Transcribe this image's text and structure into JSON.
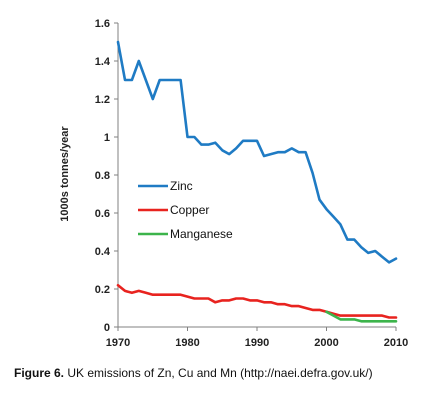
{
  "chart_data": {
    "type": "line",
    "title": "",
    "xlabel": "",
    "ylabel": "1000s tonnes/year",
    "xlim": [
      1970,
      2010
    ],
    "ylim": [
      0,
      1.6
    ],
    "x_ticks": [
      1970,
      1980,
      1990,
      2000,
      2010
    ],
    "y_ticks": [
      0,
      0.2,
      0.4,
      0.6,
      0.8,
      1,
      1.2,
      1.4,
      1.6
    ],
    "x_tick_labels": [
      "1970",
      "1980",
      "1990",
      "2000",
      "2010"
    ],
    "y_tick_labels": [
      "0",
      "0.2",
      "0.4",
      "0.6",
      "0.8",
      "1",
      "1.2",
      "1.4",
      "1.6"
    ],
    "grid": false,
    "legend_position": "center-left",
    "series": [
      {
        "name": "Zinc",
        "color": "#1f7bc4",
        "x": [
          1970,
          1971,
          1972,
          1973,
          1974,
          1975,
          1976,
          1977,
          1978,
          1979,
          1980,
          1981,
          1982,
          1983,
          1984,
          1985,
          1986,
          1987,
          1988,
          1989,
          1990,
          1991,
          1992,
          1993,
          1994,
          1995,
          1996,
          1997,
          1998,
          1999,
          2000,
          2001,
          2002,
          2003,
          2004,
          2005,
          2006,
          2007,
          2008,
          2009,
          2010
        ],
        "y": [
          1.5,
          1.3,
          1.3,
          1.4,
          1.3,
          1.2,
          1.3,
          1.3,
          1.3,
          1.3,
          1.0,
          1.0,
          0.96,
          0.96,
          0.97,
          0.93,
          0.91,
          0.94,
          0.98,
          0.98,
          0.98,
          0.9,
          0.91,
          0.92,
          0.92,
          0.94,
          0.92,
          0.92,
          0.81,
          0.67,
          0.62,
          0.58,
          0.54,
          0.46,
          0.46,
          0.42,
          0.39,
          0.4,
          0.37,
          0.34,
          0.36
        ]
      },
      {
        "name": "Copper",
        "color": "#e8231f",
        "x": [
          1970,
          1971,
          1972,
          1973,
          1974,
          1975,
          1976,
          1977,
          1978,
          1979,
          1980,
          1981,
          1982,
          1983,
          1984,
          1985,
          1986,
          1987,
          1988,
          1989,
          1990,
          1991,
          1992,
          1993,
          1994,
          1995,
          1996,
          1997,
          1998,
          1999,
          2000,
          2001,
          2002,
          2003,
          2004,
          2005,
          2006,
          2007,
          2008,
          2009,
          2010
        ],
        "y": [
          0.22,
          0.19,
          0.18,
          0.19,
          0.18,
          0.17,
          0.17,
          0.17,
          0.17,
          0.17,
          0.16,
          0.15,
          0.15,
          0.15,
          0.13,
          0.14,
          0.14,
          0.15,
          0.15,
          0.14,
          0.14,
          0.13,
          0.13,
          0.12,
          0.12,
          0.11,
          0.11,
          0.1,
          0.09,
          0.09,
          0.08,
          0.07,
          0.06,
          0.06,
          0.06,
          0.06,
          0.06,
          0.06,
          0.06,
          0.05,
          0.05
        ]
      },
      {
        "name": "Manganese",
        "color": "#3cb44b",
        "x": [
          2000,
          2001,
          2002,
          2003,
          2004,
          2005,
          2006,
          2007,
          2008,
          2009,
          2010
        ],
        "y": [
          0.08,
          0.06,
          0.04,
          0.04,
          0.04,
          0.03,
          0.03,
          0.03,
          0.03,
          0.03,
          0.03
        ]
      }
    ]
  },
  "caption": {
    "label": "Figure 6.",
    "text": " UK emissions of Zn, Cu and Mn (http://naei.defra.gov.uk/)"
  }
}
